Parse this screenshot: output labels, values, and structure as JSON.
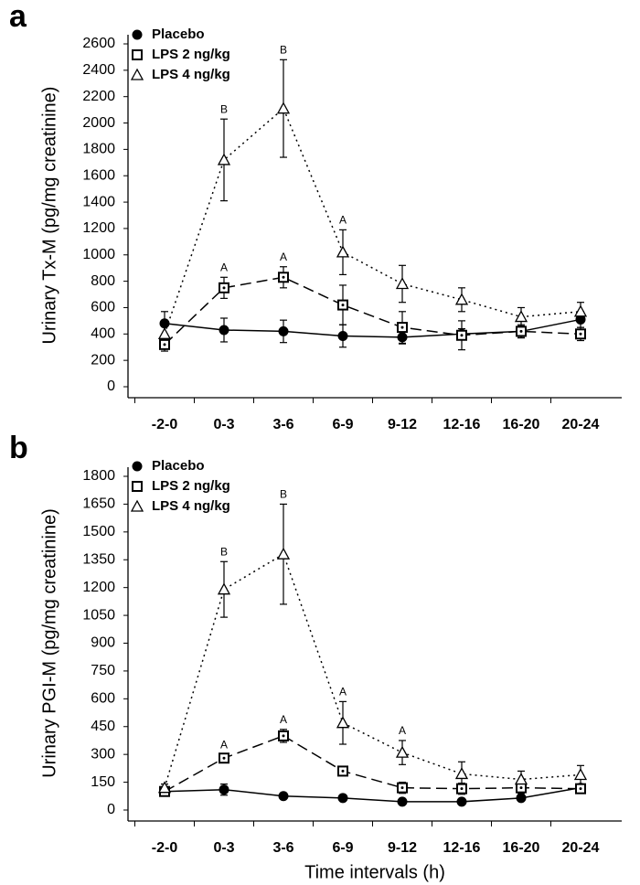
{
  "chart_data": [
    {
      "type": "line",
      "panel_label": "a",
      "ylabel": "Urinary Tx-M (pg/mg creatinine)",
      "categories": [
        "-2-0",
        "0-3",
        "3-6",
        "6-9",
        "9-12",
        "12-16",
        "16-20",
        "20-24"
      ],
      "ylim": [
        0,
        2600
      ],
      "yticks": [
        0,
        200,
        400,
        600,
        800,
        1000,
        1200,
        1400,
        1600,
        1800,
        2000,
        2200,
        2400,
        2600
      ],
      "legend": "upper left",
      "series": [
        {
          "name": "Placebo",
          "color": "#000000",
          "marker": "circle",
          "line_style": "solid",
          "values": [
            480,
            430,
            420,
            385,
            375,
            400,
            420,
            510
          ],
          "errors": [
            90,
            90,
            85,
            85,
            50,
            40,
            40,
            60
          ]
        },
        {
          "name": "LPS 2 ng/kg",
          "color": "#000000",
          "marker": "square",
          "line_style": "dashed",
          "values": [
            320,
            750,
            830,
            620,
            450,
            390,
            420,
            400
          ],
          "errors": [
            50,
            80,
            80,
            150,
            120,
            110,
            50,
            50
          ],
          "point_labels": [
            null,
            "A",
            "A",
            null,
            null,
            null,
            null,
            null
          ]
        },
        {
          "name": "LPS 4 ng/kg",
          "color": "#000000",
          "marker": "triangle",
          "line_style": "dotted",
          "values": [
            400,
            1720,
            2110,
            1020,
            780,
            660,
            530,
            570
          ],
          "errors": [
            70,
            310,
            370,
            170,
            140,
            90,
            70,
            70
          ],
          "point_labels": [
            null,
            "B",
            "B",
            "A",
            null,
            null,
            null,
            null
          ]
        }
      ]
    },
    {
      "type": "line",
      "panel_label": "b",
      "ylabel": "Urinary PGI-M (pg/mg creatinine)",
      "xlabel": "Time intervals (h)",
      "categories": [
        "-2-0",
        "0-3",
        "3-6",
        "6-9",
        "9-12",
        "12-16",
        "16-20",
        "20-24"
      ],
      "ylim": [
        0,
        1800
      ],
      "yticks": [
        0,
        150,
        300,
        450,
        600,
        750,
        900,
        1050,
        1200,
        1350,
        1500,
        1650,
        1800
      ],
      "legend": "upper left",
      "series": [
        {
          "name": "Placebo",
          "color": "#000000",
          "marker": "circle",
          "line_style": "solid",
          "values": [
            100,
            110,
            75,
            65,
            45,
            45,
            65,
            120
          ],
          "errors": [
            20,
            30,
            15,
            10,
            10,
            10,
            10,
            15
          ]
        },
        {
          "name": "LPS 2 ng/kg",
          "color": "#000000",
          "marker": "square",
          "line_style": "dashed",
          "values": [
            100,
            280,
            400,
            210,
            120,
            115,
            120,
            115
          ],
          "errors": [
            20,
            20,
            35,
            25,
            30,
            30,
            30,
            20
          ],
          "point_labels": [
            null,
            "A",
            "A",
            null,
            null,
            null,
            null,
            null
          ]
        },
        {
          "name": "LPS 4 ng/kg",
          "color": "#000000",
          "marker": "triangle",
          "line_style": "dotted",
          "values": [
            120,
            1190,
            1380,
            470,
            310,
            195,
            165,
            190
          ],
          "errors": [
            20,
            150,
            270,
            115,
            65,
            65,
            45,
            50
          ],
          "point_labels": [
            null,
            "B",
            "B",
            "A",
            "A",
            null,
            null,
            null
          ]
        }
      ]
    }
  ]
}
